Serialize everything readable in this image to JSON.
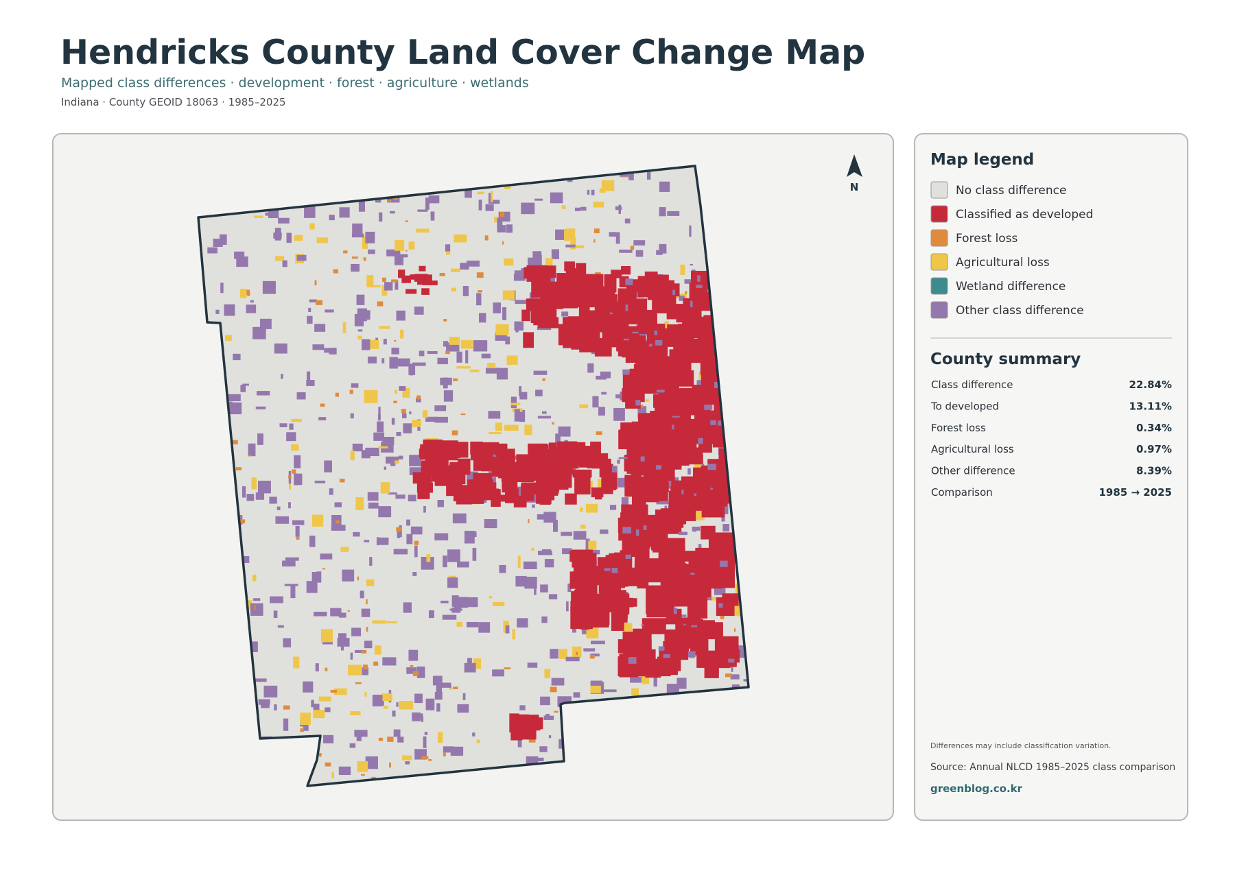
{
  "header": {
    "title": "Hendricks County Land Cover Change Map",
    "subtitle": "Mapped class differences · development · forest · agriculture · wetlands",
    "meta": "Indiana · County GEOID 18063 · 1985–2025"
  },
  "map": {
    "north_label": "N"
  },
  "legend": {
    "title": "Map legend",
    "items": [
      {
        "label": "No class difference",
        "color": "#e0e0dc"
      },
      {
        "label": "Classified as developed",
        "color": "#c62a3a"
      },
      {
        "label": "Forest loss",
        "color": "#e08b3c"
      },
      {
        "label": "Agricultural loss",
        "color": "#f0c64a"
      },
      {
        "label": "Wetland difference",
        "color": "#3e8b8f"
      },
      {
        "label": "Other class difference",
        "color": "#9478ad"
      }
    ]
  },
  "summary": {
    "title": "County summary",
    "rows": [
      [
        "Class difference",
        "22.84%"
      ],
      [
        "To developed",
        "13.11%"
      ],
      [
        "Forest loss",
        "0.34%"
      ],
      [
        "Agricultural loss",
        "0.97%"
      ],
      [
        "Other difference",
        "8.39%"
      ],
      [
        "Comparison",
        "1985 → 2025"
      ]
    ]
  },
  "footer": {
    "note": "Differences may include classification variation.",
    "source": "Source: Annual NLCD 1985–2025 class comparison",
    "site": "greenblog.co.kr"
  }
}
